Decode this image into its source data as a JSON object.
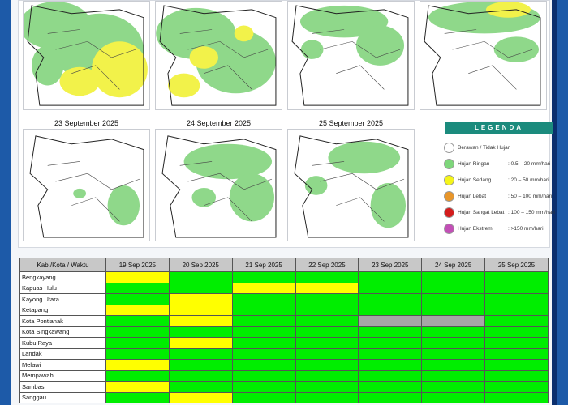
{
  "maps": {
    "dates": [
      "23 September 2025",
      "24 September 2025",
      "25 September 2025"
    ]
  },
  "legend": {
    "title": "LEGENDA",
    "items": [
      {
        "label": "Berawan / Tidak Hujan",
        "range": "",
        "color": "#ffffff"
      },
      {
        "label": "Hujan Ringan",
        "range": ": 0.5 – 20 mm/hari",
        "color": "#7ed67b"
      },
      {
        "label": "Hujan Sedang",
        "range": ": 20 – 50 mm/hari",
        "color": "#f5f51a"
      },
      {
        "label": "Hujan Lebat",
        "range": ": 50 – 100 mm/hari",
        "color": "#e8962a"
      },
      {
        "label": "Hujan Sangat Lebat",
        "range": ": 100 – 150 mm/hari",
        "color": "#d41c1c"
      },
      {
        "label": "Hujan Ekstrem",
        "range": ": >150 mm/hari",
        "color": "#c24fb6"
      }
    ]
  },
  "table": {
    "corner": "Kab./Kota / Waktu",
    "dates": [
      "19 Sep 2025",
      "20 Sep 2025",
      "21 Sep 2025",
      "22 Sep 2025",
      "23 Sep 2025",
      "24 Sep 2025",
      "25 Sep 2025"
    ],
    "rows": [
      {
        "name": "Bengkayang",
        "cells": [
          "y",
          "g",
          "g",
          "g",
          "g",
          "g",
          "g"
        ]
      },
      {
        "name": "Kapuas Hulu",
        "cells": [
          "g",
          "g",
          "y",
          "y",
          "g",
          "g",
          "g"
        ]
      },
      {
        "name": "Kayong Utara",
        "cells": [
          "g",
          "y",
          "g",
          "g",
          "g",
          "g",
          "g"
        ]
      },
      {
        "name": "Ketapang",
        "cells": [
          "y",
          "y",
          "g",
          "g",
          "g",
          "g",
          "g"
        ]
      },
      {
        "name": "Kota Pontianak",
        "cells": [
          "g",
          "y",
          "g",
          "g",
          "x",
          "x",
          "g"
        ]
      },
      {
        "name": "Kota Singkawang",
        "cells": [
          "g",
          "g",
          "g",
          "g",
          "g",
          "g",
          "g"
        ]
      },
      {
        "name": "Kubu Raya",
        "cells": [
          "g",
          "y",
          "g",
          "g",
          "g",
          "g",
          "g"
        ]
      },
      {
        "name": "Landak",
        "cells": [
          "g",
          "g",
          "g",
          "g",
          "g",
          "g",
          "g"
        ]
      },
      {
        "name": "Melawi",
        "cells": [
          "y",
          "g",
          "g",
          "g",
          "g",
          "g",
          "g"
        ]
      },
      {
        "name": "Mempawah",
        "cells": [
          "g",
          "g",
          "g",
          "g",
          "g",
          "g",
          "g"
        ]
      },
      {
        "name": "Sambas",
        "cells": [
          "y",
          "g",
          "g",
          "g",
          "g",
          "g",
          "g"
        ]
      },
      {
        "name": "Sanggau",
        "cells": [
          "g",
          "y",
          "g",
          "g",
          "g",
          "g",
          "g"
        ]
      }
    ]
  }
}
